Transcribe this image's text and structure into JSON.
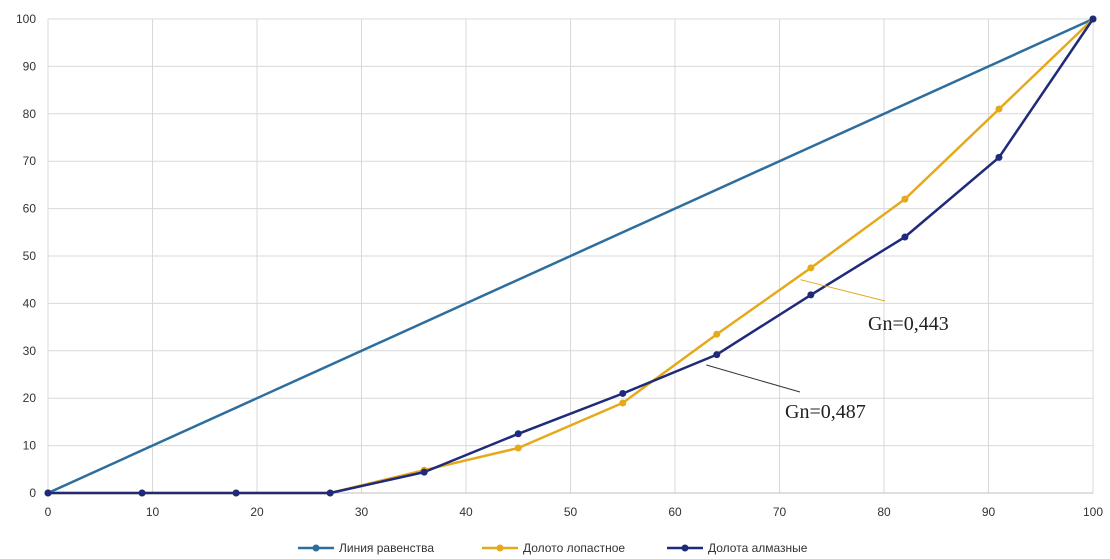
{
  "chart_data": {
    "type": "line",
    "xlim": [
      0,
      100
    ],
    "ylim": [
      0,
      100
    ],
    "x_ticks": [
      0,
      10,
      20,
      30,
      40,
      50,
      60,
      70,
      80,
      90,
      100
    ],
    "y_ticks": [
      0,
      10,
      20,
      30,
      40,
      50,
      60,
      70,
      80,
      90,
      100
    ],
    "grid": true,
    "legend_position": "bottom",
    "series": [
      {
        "name": "Линия равенства",
        "color": "#2E6E9E",
        "points": [
          [
            0,
            0
          ],
          [
            100,
            100
          ]
        ]
      },
      {
        "name": "Долото лопастное",
        "color": "#E5A91A",
        "points": [
          [
            0,
            0
          ],
          [
            9,
            0
          ],
          [
            18,
            0
          ],
          [
            27,
            0
          ],
          [
            36,
            4.8
          ],
          [
            45,
            9.5
          ],
          [
            55,
            19
          ],
          [
            64,
            33.5
          ],
          [
            73,
            47.5
          ],
          [
            82,
            62
          ],
          [
            91,
            81
          ],
          [
            100,
            100
          ]
        ]
      },
      {
        "name": "Долота алмазные",
        "color": "#1F2A7A",
        "points": [
          [
            0,
            0
          ],
          [
            9,
            0
          ],
          [
            18,
            0
          ],
          [
            27,
            0
          ],
          [
            36,
            4.4
          ],
          [
            45,
            12.5
          ],
          [
            55,
            21
          ],
          [
            64,
            29.2
          ],
          [
            73,
            41.8
          ],
          [
            82,
            54
          ],
          [
            91,
            70.8
          ],
          [
            100,
            100
          ]
        ]
      }
    ],
    "annotations": [
      {
        "text": "Gn=0,443",
        "series": "Долото лопастное",
        "point": [
          72,
          45
        ]
      },
      {
        "text": "Gn=0,487",
        "series": "Долота алмазные",
        "point": [
          63,
          27
        ]
      }
    ]
  }
}
